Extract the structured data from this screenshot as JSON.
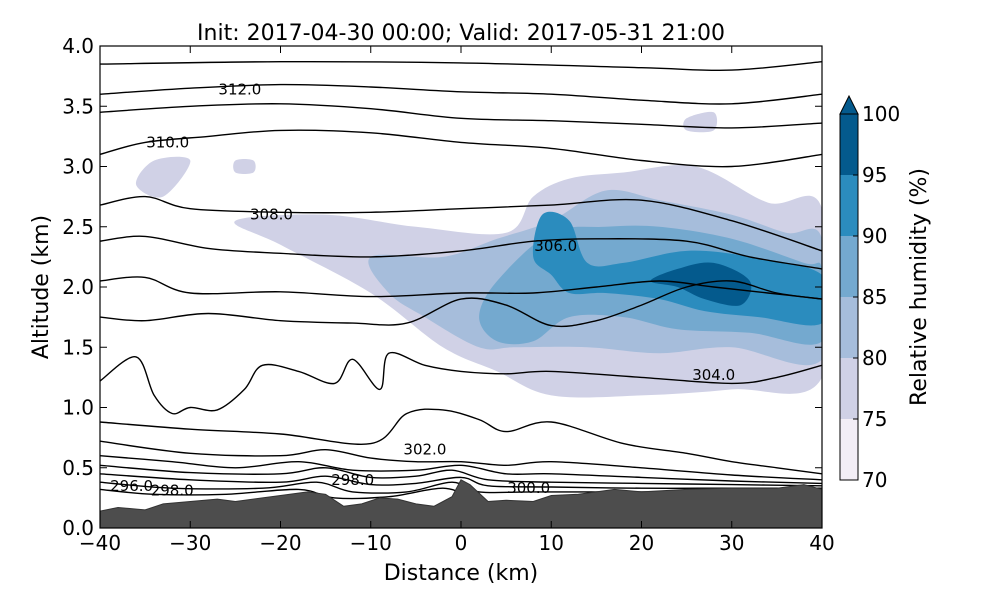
{
  "chart_data": {
    "type": "contour",
    "title": "Init: 2017-04-30 00:00; Valid: 2017-05-31 21:00",
    "xlabel": "Distance (km)",
    "ylabel": "Altitude (km)",
    "xlim": [
      -40,
      40
    ],
    "ylim": [
      0.0,
      4.0
    ],
    "x_ticks": [
      -40,
      -30,
      -20,
      -10,
      0,
      10,
      20,
      30,
      40
    ],
    "x_tick_labels": [
      "−40",
      "−30",
      "−20",
      "−10",
      "0",
      "10",
      "20",
      "30",
      "40"
    ],
    "y_ticks": [
      0.0,
      0.5,
      1.0,
      1.5,
      2.0,
      2.5,
      3.0,
      3.5,
      4.0
    ],
    "y_tick_labels": [
      "0.0",
      "0.5",
      "1.0",
      "1.5",
      "2.0",
      "2.5",
      "3.0",
      "3.5",
      "4.0"
    ],
    "colorbar": {
      "label": "Relative humidity (%)",
      "levels": [
        70,
        75,
        80,
        85,
        90,
        95,
        100
      ],
      "tick_labels": [
        "70",
        "75",
        "80",
        "85",
        "90",
        "95",
        "100"
      ],
      "colors": [
        "#f3eef6",
        "#d0d1e6",
        "#a6bddb",
        "#74a9cf",
        "#2b8cbe",
        "#045a8d"
      ],
      "extend": "max",
      "extend_color": "#045a8d"
    },
    "humidity_regions": [
      {
        "level": 75,
        "points": [
          [
            -25,
            2.55
          ],
          [
            -15,
            2.6
          ],
          [
            -5,
            2.5
          ],
          [
            5,
            2.45
          ],
          [
            8,
            2.75
          ],
          [
            12,
            2.9
          ],
          [
            18,
            2.95
          ],
          [
            26,
            3.0
          ],
          [
            34,
            2.7
          ],
          [
            40,
            2.65
          ],
          [
            40,
            1.25
          ],
          [
            30,
            1.15
          ],
          [
            20,
            1.1
          ],
          [
            10,
            1.1
          ],
          [
            4,
            1.3
          ],
          [
            -2,
            1.5
          ],
          [
            -10,
            1.95
          ],
          [
            -20,
            2.35
          ]
        ]
      },
      {
        "level": 75,
        "points": [
          [
            -36,
            2.85
          ],
          [
            -34,
            3.05
          ],
          [
            -30,
            3.05
          ],
          [
            -33,
            2.75
          ]
        ]
      },
      {
        "level": 75,
        "points": [
          [
            -25,
            3.05
          ],
          [
            -23,
            3.05
          ],
          [
            -23,
            2.95
          ],
          [
            -25,
            2.95
          ]
        ]
      },
      {
        "level": 75,
        "points": [
          [
            25,
            3.4
          ],
          [
            28,
            3.45
          ],
          [
            28,
            3.3
          ],
          [
            25,
            3.3
          ]
        ]
      },
      {
        "level": 80,
        "points": [
          [
            -10,
            2.25
          ],
          [
            -2,
            2.25
          ],
          [
            4,
            2.4
          ],
          [
            10,
            2.55
          ],
          [
            16,
            2.8
          ],
          [
            22,
            2.72
          ],
          [
            30,
            2.6
          ],
          [
            36,
            2.45
          ],
          [
            40,
            2.4
          ],
          [
            40,
            1.4
          ],
          [
            30,
            1.5
          ],
          [
            22,
            1.45
          ],
          [
            14,
            1.5
          ],
          [
            6,
            1.5
          ],
          [
            2,
            1.5
          ],
          [
            -4,
            1.75
          ],
          [
            -8,
            1.95
          ]
        ]
      },
      {
        "level": 85,
        "points": [
          [
            4,
            2.05
          ],
          [
            10,
            2.45
          ],
          [
            16,
            2.5
          ],
          [
            22,
            2.5
          ],
          [
            30,
            2.4
          ],
          [
            38,
            2.2
          ],
          [
            40,
            2.15
          ],
          [
            40,
            1.55
          ],
          [
            32,
            1.62
          ],
          [
            24,
            1.65
          ],
          [
            18,
            1.75
          ],
          [
            12,
            1.75
          ],
          [
            8,
            1.55
          ],
          [
            4,
            1.55
          ],
          [
            2,
            1.75
          ]
        ]
      },
      {
        "level": 90,
        "points": [
          [
            8,
            2.25
          ],
          [
            9,
            2.6
          ],
          [
            12,
            2.55
          ],
          [
            14,
            2.2
          ],
          [
            18,
            2.2
          ],
          [
            25,
            2.3
          ],
          [
            32,
            2.25
          ],
          [
            40,
            2.1
          ],
          [
            40,
            1.7
          ],
          [
            33,
            1.75
          ],
          [
            27,
            1.8
          ],
          [
            22,
            1.9
          ],
          [
            16,
            1.95
          ],
          [
            12,
            1.95
          ],
          [
            10,
            2.1
          ]
        ]
      },
      {
        "level": 95,
        "points": [
          [
            21,
            2.05
          ],
          [
            24,
            2.15
          ],
          [
            28,
            2.2
          ],
          [
            32,
            2.05
          ],
          [
            31,
            1.85
          ],
          [
            27,
            1.9
          ],
          [
            24,
            2.0
          ]
        ]
      }
    ],
    "theta_contours": [
      [
        [
          -40,
          3.85
        ],
        [
          -20,
          3.87
        ],
        [
          0,
          3.86
        ],
        [
          20,
          3.82
        ],
        [
          30,
          3.8
        ],
        [
          40,
          3.87
        ]
      ],
      [
        [
          -40,
          3.6
        ],
        [
          -30,
          3.65
        ],
        [
          -20,
          3.68
        ],
        [
          -10,
          3.66
        ],
        [
          0,
          3.62
        ],
        [
          10,
          3.6
        ],
        [
          20,
          3.55
        ],
        [
          30,
          3.52
        ],
        [
          40,
          3.6
        ]
      ],
      [
        [
          -40,
          3.45
        ],
        [
          -30,
          3.5
        ],
        [
          -20,
          3.52
        ],
        [
          -10,
          3.48
        ],
        [
          0,
          3.4
        ],
        [
          10,
          3.38
        ],
        [
          20,
          3.35
        ],
        [
          30,
          3.32
        ],
        [
          40,
          3.36
        ]
      ],
      [
        [
          -40,
          3.1
        ],
        [
          -35,
          3.2
        ],
        [
          -28,
          3.25
        ],
        [
          -20,
          3.3
        ],
        [
          -10,
          3.28
        ],
        [
          0,
          3.2
        ],
        [
          10,
          3.15
        ],
        [
          20,
          3.05
        ],
        [
          30,
          3.0
        ],
        [
          40,
          3.1
        ]
      ],
      [
        [
          -40,
          2.68
        ],
        [
          -35,
          2.75
        ],
        [
          -30,
          2.65
        ],
        [
          -20,
          2.62
        ],
        [
          -10,
          2.62
        ],
        [
          0,
          2.65
        ],
        [
          10,
          2.68
        ],
        [
          20,
          2.72
        ],
        [
          30,
          2.55
        ],
        [
          40,
          2.3
        ]
      ],
      [
        [
          -40,
          2.38
        ],
        [
          -35,
          2.42
        ],
        [
          -28,
          2.32
        ],
        [
          -20,
          2.28
        ],
        [
          -10,
          2.25
        ],
        [
          0,
          2.3
        ],
        [
          8,
          2.38
        ],
        [
          15,
          2.4
        ],
        [
          25,
          2.38
        ],
        [
          32,
          2.25
        ],
        [
          40,
          2.15
        ]
      ],
      [
        [
          -40,
          2.05
        ],
        [
          -35,
          2.08
        ],
        [
          -30,
          1.95
        ],
        [
          -20,
          1.96
        ],
        [
          -10,
          1.92
        ],
        [
          0,
          1.95
        ],
        [
          8,
          1.95
        ],
        [
          15,
          2.0
        ],
        [
          22,
          2.05
        ],
        [
          28,
          2.0
        ],
        [
          34,
          1.95
        ],
        [
          40,
          1.9
        ]
      ],
      [
        [
          -40,
          1.75
        ],
        [
          -35,
          1.72
        ],
        [
          -28,
          1.78
        ],
        [
          -20,
          1.72
        ],
        [
          -12,
          1.7
        ],
        [
          -6,
          1.7
        ],
        [
          0,
          1.9
        ],
        [
          5,
          1.85
        ],
        [
          10,
          1.68
        ],
        [
          15,
          1.72
        ],
        [
          20,
          1.85
        ],
        [
          25,
          2.0
        ],
        [
          30,
          2.05
        ],
        [
          35,
          1.95
        ],
        [
          40,
          1.9
        ]
      ],
      [
        [
          -40,
          1.22
        ],
        [
          -36,
          1.42
        ],
        [
          -34,
          1.1
        ],
        [
          -32,
          0.95
        ],
        [
          -30,
          1.0
        ],
        [
          -27,
          0.98
        ],
        [
          -24,
          1.15
        ],
        [
          -22,
          1.35
        ],
        [
          -18,
          1.3
        ],
        [
          -14,
          1.2
        ],
        [
          -12,
          1.4
        ],
        [
          -9,
          1.15
        ],
        [
          -8,
          1.45
        ],
        [
          -4,
          1.35
        ],
        [
          0,
          1.3
        ],
        [
          5,
          1.28
        ],
        [
          10,
          1.3
        ],
        [
          20,
          1.25
        ],
        [
          30,
          1.2
        ],
        [
          35,
          1.25
        ],
        [
          40,
          1.35
        ]
      ],
      [
        [
          -40,
          0.88
        ],
        [
          -30,
          0.82
        ],
        [
          -20,
          0.78
        ],
        [
          -10,
          0.7
        ],
        [
          -6,
          0.95
        ],
        [
          -2,
          0.98
        ],
        [
          2,
          0.9
        ],
        [
          5,
          0.8
        ],
        [
          10,
          0.88
        ],
        [
          18,
          0.7
        ],
        [
          25,
          0.62
        ],
        [
          30,
          0.55
        ],
        [
          35,
          0.5
        ],
        [
          40,
          0.45
        ]
      ],
      [
        [
          -40,
          0.72
        ],
        [
          -30,
          0.62
        ],
        [
          -20,
          0.6
        ],
        [
          -15,
          0.65
        ],
        [
          -10,
          0.58
        ],
        [
          -5,
          0.55
        ],
        [
          0,
          0.55
        ],
        [
          5,
          0.52
        ],
        [
          10,
          0.55
        ],
        [
          20,
          0.5
        ],
        [
          30,
          0.44
        ],
        [
          40,
          0.4
        ]
      ],
      [
        [
          -40,
          0.6
        ],
        [
          -32,
          0.55
        ],
        [
          -25,
          0.5
        ],
        [
          -18,
          0.55
        ],
        [
          -12,
          0.48
        ],
        [
          -5,
          0.48
        ],
        [
          0,
          0.52
        ],
        [
          5,
          0.45
        ],
        [
          10,
          0.45
        ],
        [
          20,
          0.42
        ],
        [
          30,
          0.39
        ],
        [
          40,
          0.37
        ]
      ],
      [
        [
          -40,
          0.52
        ],
        [
          -30,
          0.46
        ],
        [
          -20,
          0.45
        ],
        [
          -15,
          0.5
        ],
        [
          -10,
          0.42
        ],
        [
          -5,
          0.43
        ],
        [
          -1,
          0.48
        ],
        [
          3,
          0.4
        ],
        [
          10,
          0.38
        ],
        [
          20,
          0.37
        ],
        [
          30,
          0.36
        ],
        [
          40,
          0.35
        ]
      ],
      [
        [
          -40,
          0.45
        ],
        [
          -30,
          0.4
        ],
        [
          -20,
          0.38
        ],
        [
          -15,
          0.43
        ],
        [
          -10,
          0.36
        ],
        [
          -5,
          0.37
        ],
        [
          0,
          0.42
        ],
        [
          3,
          0.35
        ],
        [
          10,
          0.34
        ],
        [
          20,
          0.33
        ],
        [
          30,
          0.33
        ],
        [
          40,
          0.33
        ]
      ],
      [
        [
          -40,
          0.38
        ],
        [
          -32,
          0.33
        ],
        [
          -22,
          0.33
        ],
        [
          -16,
          0.38
        ],
        [
          -12,
          0.3
        ],
        [
          -6,
          0.3
        ],
        [
          -1,
          0.38
        ],
        [
          2,
          0.3
        ],
        [
          8,
          0.3
        ],
        [
          20,
          0.3
        ],
        [
          30,
          0.3
        ],
        [
          40,
          0.3
        ]
      ],
      [
        [
          -40,
          0.32
        ],
        [
          -34,
          0.28
        ],
        [
          -26,
          0.28
        ],
        [
          -18,
          0.32
        ],
        [
          -14,
          0.25
        ],
        [
          -8,
          0.26
        ],
        [
          -2,
          0.33
        ],
        [
          1,
          0.25
        ]
      ]
    ],
    "contour_labels": [
      {
        "text": "312.0",
        "x": -24.5,
        "y": 3.64
      },
      {
        "text": "310.0",
        "x": -32.5,
        "y": 3.2
      },
      {
        "text": "308.0",
        "x": -21,
        "y": 2.6
      },
      {
        "text": "306.0",
        "x": 10.5,
        "y": 2.34
      },
      {
        "text": "304.0",
        "x": 28,
        "y": 1.27
      },
      {
        "text": "302.0",
        "x": -4,
        "y": 0.65
      },
      {
        "text": "300.0",
        "x": 7.5,
        "y": 0.33
      },
      {
        "text": "298.0",
        "x": -12,
        "y": 0.4
      },
      {
        "text": "298.0",
        "x": -32,
        "y": 0.31
      },
      {
        "text": "296.0",
        "x": -36.5,
        "y": 0.35
      }
    ],
    "terrain": [
      [
        -40,
        0.14
      ],
      [
        -38,
        0.17
      ],
      [
        -35,
        0.15
      ],
      [
        -33,
        0.2
      ],
      [
        -30,
        0.22
      ],
      [
        -27,
        0.24
      ],
      [
        -25,
        0.22
      ],
      [
        -22,
        0.25
      ],
      [
        -20,
        0.27
      ],
      [
        -17,
        0.3
      ],
      [
        -15,
        0.28
      ],
      [
        -13,
        0.18
      ],
      [
        -11,
        0.2
      ],
      [
        -9,
        0.25
      ],
      [
        -7,
        0.24
      ],
      [
        -5,
        0.2
      ],
      [
        -3,
        0.18
      ],
      [
        -1,
        0.26
      ],
      [
        0,
        0.4
      ],
      [
        1,
        0.36
      ],
      [
        3,
        0.22
      ],
      [
        5,
        0.23
      ],
      [
        8,
        0.22
      ],
      [
        10,
        0.27
      ],
      [
        13,
        0.28
      ],
      [
        15,
        0.3
      ],
      [
        17,
        0.32
      ],
      [
        20,
        0.3
      ],
      [
        25,
        0.32
      ],
      [
        30,
        0.33
      ],
      [
        35,
        0.33
      ],
      [
        38,
        0.36
      ],
      [
        40,
        0.32
      ]
    ]
  }
}
